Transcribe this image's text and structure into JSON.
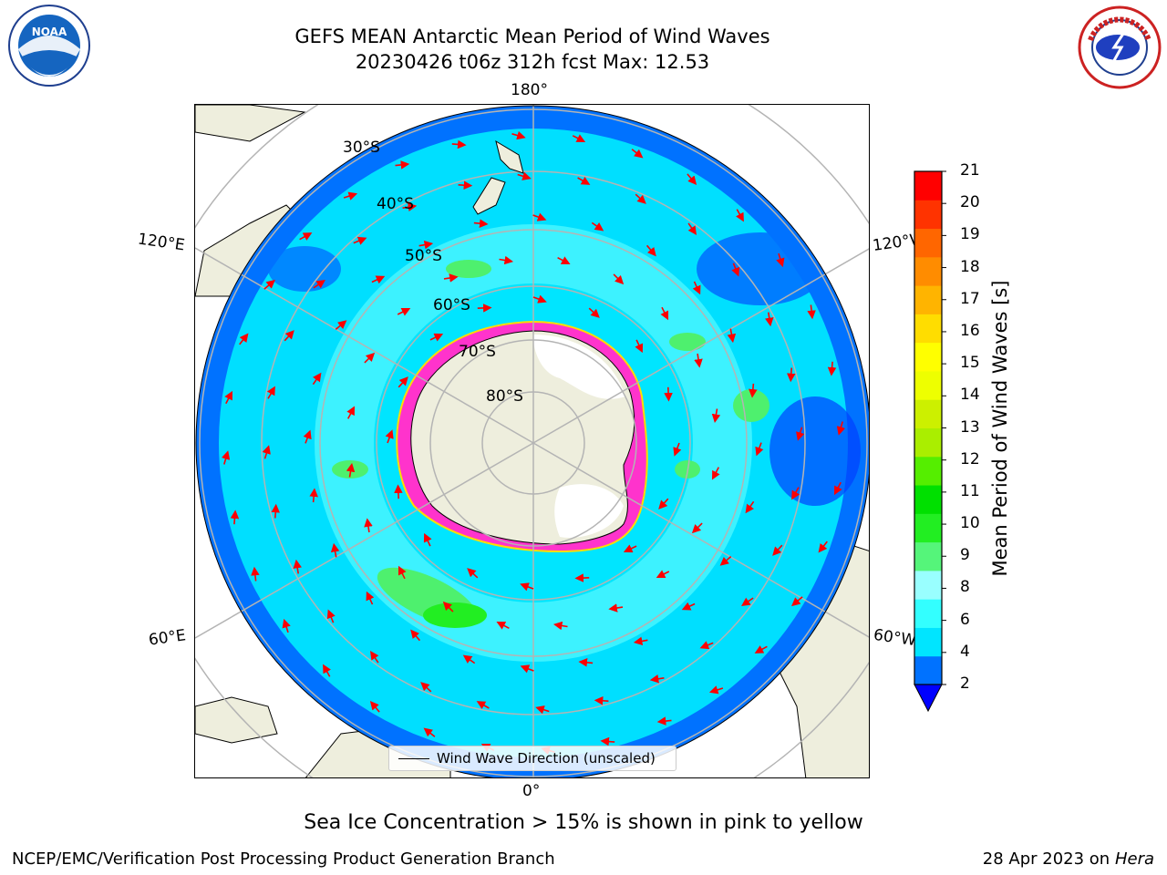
{
  "title_line1": "GEFS MEAN Antarctic Mean Period of Wind Waves",
  "title_line2": "20230426 t06z 312h fcst   Max: 12.53",
  "logos": {
    "left": "NOAA",
    "right": "NATIONAL WEATHER SERVICE"
  },
  "map": {
    "projection": "south-polar-stereographic",
    "longitude_labels": {
      "top": "180°",
      "bottom": "0°",
      "upper_left": "120°E",
      "upper_right": "120°W",
      "lower_left": "60°E",
      "lower_right": "60°W"
    },
    "latitude_labels": [
      "30°S",
      "40°S",
      "50°S",
      "60°S",
      "70°S",
      "80°S"
    ],
    "colors": {
      "land": "#eeeedd",
      "ocean_main": "#00e5ff",
      "ocean_light": "#66ffff",
      "ocean_deep": "#0072ff",
      "swell_green": "#4ef06e",
      "sea_ice": "#ff33cc",
      "grid": "#b4b4b4",
      "arrow": "#ff0000"
    },
    "legend_label": "Wind Wave Direction (unscaled)"
  },
  "colorbar": {
    "label": "Mean Period of Wind Waves [s]",
    "ticks": [
      "21",
      "20",
      "19",
      "18",
      "17",
      "16",
      "15",
      "14",
      "13",
      "12",
      "11",
      "10",
      "9",
      "8",
      "6",
      "4",
      "2"
    ],
    "colors_bottom_to_top": [
      "#0072ff",
      "#00e5ff",
      "#33ffff",
      "#99ffff",
      "#55f57a",
      "#22ee22",
      "#00e000",
      "#55ee00",
      "#aaee00",
      "#ccf000",
      "#eeff00",
      "#ffff00",
      "#ffdd00",
      "#ffb400",
      "#ff8c00",
      "#ff6600",
      "#ff3300",
      "#ff0000"
    ],
    "underflow_color": "#0000ff"
  },
  "ice_note": "Sea Ice Concentration > 15% is shown in pink to yellow",
  "footer": {
    "left": "NCEP/EMC/Verification Post Processing Product Generation Branch",
    "date": "28 Apr 2023 on ",
    "machine": "Hera"
  }
}
